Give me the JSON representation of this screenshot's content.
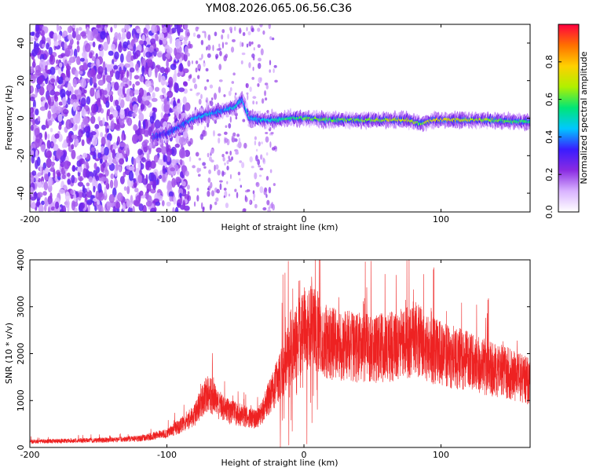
{
  "title": "YM08.2026.065.06.56.C36",
  "chart_data": [
    {
      "type": "heatmap",
      "xlabel": "Height of straight line (km)",
      "ylabel": "Frequency (Hz)",
      "xlim": [
        -200,
        165
      ],
      "ylim": [
        -50,
        50
      ],
      "xticks": [
        -200,
        -100,
        0,
        100
      ],
      "yticks": [
        -40,
        -20,
        0,
        20,
        40
      ],
      "colorbar": {
        "label": "Normalized spectral amplitude",
        "range": [
          0,
          1
        ],
        "ticks": [
          "0.0",
          "0.2",
          "0.4",
          "0.6",
          "0.8"
        ],
        "colors": [
          "#ffffff",
          "#d9b3ff",
          "#8a2be2",
          "#3a1cff",
          "#00c8ff",
          "#00e676",
          "#b0f000",
          "#ffd000",
          "#ff7000",
          "#ff0040"
        ]
      },
      "ridge": {
        "x": [
          -110,
          -100,
          -90,
          -80,
          -70,
          -60,
          -50,
          -45,
          -40,
          -30,
          -20,
          -10,
          0,
          20,
          50,
          75,
          85,
          95,
          130,
          165
        ],
        "freq": [
          -10,
          -8,
          -4,
          0,
          2,
          4,
          6,
          10,
          0,
          -1,
          -1,
          0,
          0,
          -1,
          -1,
          -1,
          -3,
          -1,
          -1,
          -2
        ],
        "amplitude": [
          0.25,
          0.3,
          0.35,
          0.45,
          0.45,
          0.4,
          0.5,
          0.4,
          0.45,
          0.45,
          0.5,
          0.55,
          0.6,
          0.6,
          0.65,
          0.7,
          0.6,
          0.75,
          0.65,
          0.55
        ]
      },
      "noise_region_x": [
        -200,
        -85
      ]
    },
    {
      "type": "line",
      "xlabel": "Height of straight line (km)",
      "ylabel": "SNR (10 * v/v)",
      "xlim": [
        -200,
        165
      ],
      "ylim": [
        0,
        4000
      ],
      "xticks": [
        -200,
        -100,
        0,
        100
      ],
      "yticks": [
        0,
        1000,
        2000,
        3000,
        4000
      ],
      "series": [
        {
          "color": "#ee2222",
          "envelope_x": [
            -200,
            -150,
            -120,
            -100,
            -90,
            -80,
            -75,
            -70,
            -65,
            -60,
            -55,
            -50,
            -45,
            -40,
            -35,
            -30,
            -25,
            -20,
            -15,
            -10,
            -5,
            0,
            5,
            10,
            15,
            20,
            30,
            40,
            50,
            60,
            70,
            80,
            90,
            100,
            110,
            120,
            130,
            140,
            150,
            165
          ],
          "envelope_y": [
            150,
            180,
            220,
            350,
            550,
            800,
            1100,
            1400,
            1200,
            1000,
            900,
            850,
            800,
            750,
            700,
            900,
            1300,
            1600,
            2000,
            2400,
            2700,
            2900,
            3100,
            2900,
            2700,
            2600,
            2550,
            2500,
            2500,
            2500,
            2550,
            2750,
            2500,
            2350,
            2250,
            2150,
            2050,
            1950,
            1850,
            1650
          ]
        }
      ]
    }
  ]
}
